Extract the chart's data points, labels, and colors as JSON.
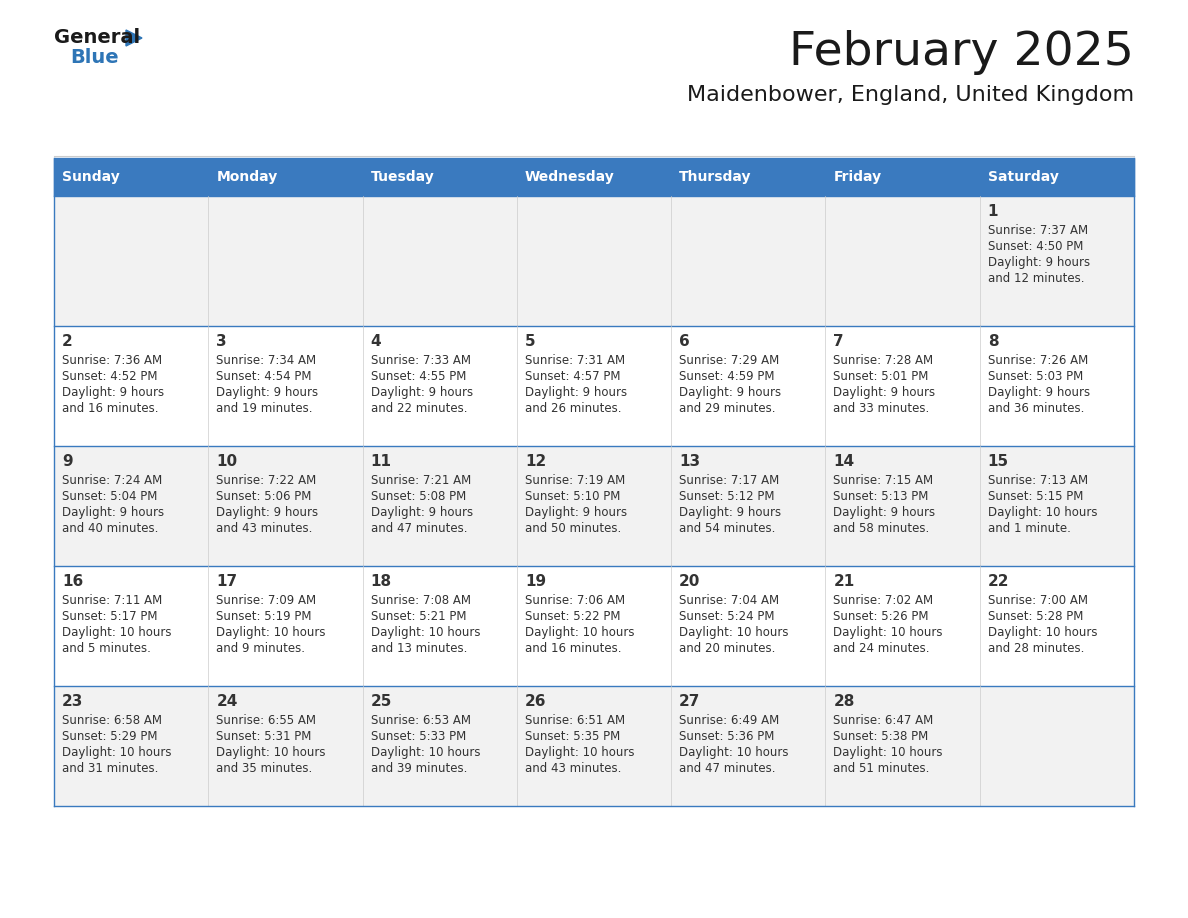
{
  "title": "February 2025",
  "subtitle": "Maidenbower, England, United Kingdom",
  "days_of_week": [
    "Sunday",
    "Monday",
    "Tuesday",
    "Wednesday",
    "Thursday",
    "Friday",
    "Saturday"
  ],
  "header_bg": "#3A7ABF",
  "header_text": "#FFFFFF",
  "cell_bg_odd": "#F2F2F2",
  "cell_bg_even": "#FFFFFF",
  "border_color": "#3A7ABF",
  "text_color": "#333333",
  "title_color": "#1a1a1a",
  "logo_general_color": "#1a1a1a",
  "logo_blue_color": "#2E75B6",
  "logo_triangle_color": "#2E75B6",
  "calendar_data": [
    [
      null,
      null,
      null,
      null,
      null,
      null,
      1
    ],
    [
      2,
      3,
      4,
      5,
      6,
      7,
      8
    ],
    [
      9,
      10,
      11,
      12,
      13,
      14,
      15
    ],
    [
      16,
      17,
      18,
      19,
      20,
      21,
      22
    ],
    [
      23,
      24,
      25,
      26,
      27,
      28,
      null
    ]
  ],
  "sun_data": {
    "1": {
      "rise": "7:37 AM",
      "set": "4:50 PM",
      "day": "9 hours",
      "rest": "and 12 minutes."
    },
    "2": {
      "rise": "7:36 AM",
      "set": "4:52 PM",
      "day": "9 hours",
      "rest": "and 16 minutes."
    },
    "3": {
      "rise": "7:34 AM",
      "set": "4:54 PM",
      "day": "9 hours",
      "rest": "and 19 minutes."
    },
    "4": {
      "rise": "7:33 AM",
      "set": "4:55 PM",
      "day": "9 hours",
      "rest": "and 22 minutes."
    },
    "5": {
      "rise": "7:31 AM",
      "set": "4:57 PM",
      "day": "9 hours",
      "rest": "and 26 minutes."
    },
    "6": {
      "rise": "7:29 AM",
      "set": "4:59 PM",
      "day": "9 hours",
      "rest": "and 29 minutes."
    },
    "7": {
      "rise": "7:28 AM",
      "set": "5:01 PM",
      "day": "9 hours",
      "rest": "and 33 minutes."
    },
    "8": {
      "rise": "7:26 AM",
      "set": "5:03 PM",
      "day": "9 hours",
      "rest": "and 36 minutes."
    },
    "9": {
      "rise": "7:24 AM",
      "set": "5:04 PM",
      "day": "9 hours",
      "rest": "and 40 minutes."
    },
    "10": {
      "rise": "7:22 AM",
      "set": "5:06 PM",
      "day": "9 hours",
      "rest": "and 43 minutes."
    },
    "11": {
      "rise": "7:21 AM",
      "set": "5:08 PM",
      "day": "9 hours",
      "rest": "and 47 minutes."
    },
    "12": {
      "rise": "7:19 AM",
      "set": "5:10 PM",
      "day": "9 hours",
      "rest": "and 50 minutes."
    },
    "13": {
      "rise": "7:17 AM",
      "set": "5:12 PM",
      "day": "9 hours",
      "rest": "and 54 minutes."
    },
    "14": {
      "rise": "7:15 AM",
      "set": "5:13 PM",
      "day": "9 hours",
      "rest": "and 58 minutes."
    },
    "15": {
      "rise": "7:13 AM",
      "set": "5:15 PM",
      "day": "10 hours",
      "rest": "and 1 minute."
    },
    "16": {
      "rise": "7:11 AM",
      "set": "5:17 PM",
      "day": "10 hours",
      "rest": "and 5 minutes."
    },
    "17": {
      "rise": "7:09 AM",
      "set": "5:19 PM",
      "day": "10 hours",
      "rest": "and 9 minutes."
    },
    "18": {
      "rise": "7:08 AM",
      "set": "5:21 PM",
      "day": "10 hours",
      "rest": "and 13 minutes."
    },
    "19": {
      "rise": "7:06 AM",
      "set": "5:22 PM",
      "day": "10 hours",
      "rest": "and 16 minutes."
    },
    "20": {
      "rise": "7:04 AM",
      "set": "5:24 PM",
      "day": "10 hours",
      "rest": "and 20 minutes."
    },
    "21": {
      "rise": "7:02 AM",
      "set": "5:26 PM",
      "day": "10 hours",
      "rest": "and 24 minutes."
    },
    "22": {
      "rise": "7:00 AM",
      "set": "5:28 PM",
      "day": "10 hours",
      "rest": "and 28 minutes."
    },
    "23": {
      "rise": "6:58 AM",
      "set": "5:29 PM",
      "day": "10 hours",
      "rest": "and 31 minutes."
    },
    "24": {
      "rise": "6:55 AM",
      "set": "5:31 PM",
      "day": "10 hours",
      "rest": "and 35 minutes."
    },
    "25": {
      "rise": "6:53 AM",
      "set": "5:33 PM",
      "day": "10 hours",
      "rest": "and 39 minutes."
    },
    "26": {
      "rise": "6:51 AM",
      "set": "5:35 PM",
      "day": "10 hours",
      "rest": "and 43 minutes."
    },
    "27": {
      "rise": "6:49 AM",
      "set": "5:36 PM",
      "day": "10 hours",
      "rest": "and 47 minutes."
    },
    "28": {
      "rise": "6:47 AM",
      "set": "5:38 PM",
      "day": "10 hours",
      "rest": "and 51 minutes."
    }
  }
}
